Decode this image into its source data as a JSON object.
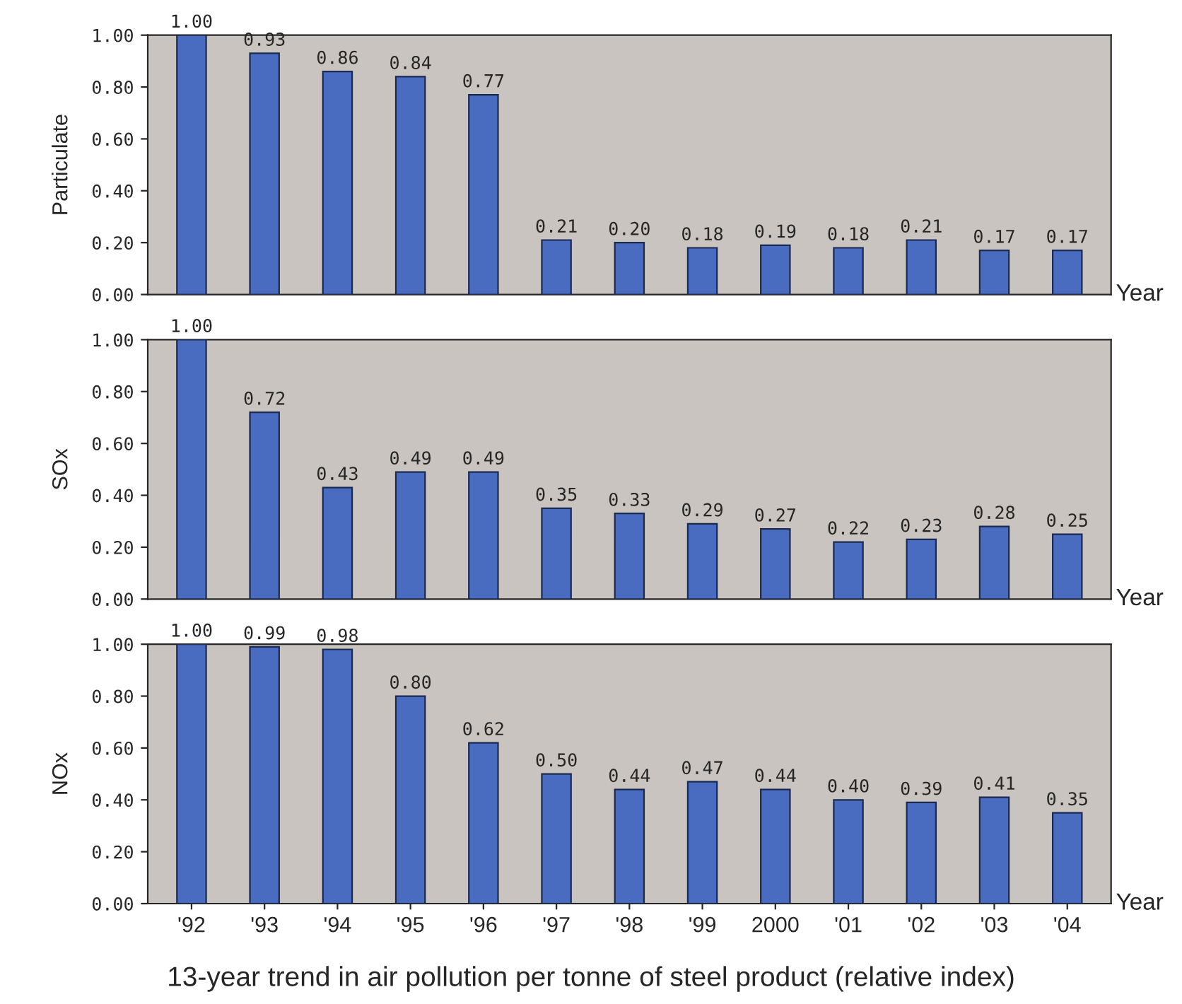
{
  "chart_data": [
    {
      "type": "bar",
      "ylabel": "Particulate",
      "xlabel": "Year",
      "categories": [
        null,
        null,
        null,
        null,
        null,
        null,
        null,
        null,
        null,
        null,
        null,
        null,
        null
      ],
      "values": [
        1.0,
        0.93,
        0.86,
        0.84,
        0.77,
        0.21,
        0.2,
        0.18,
        0.19,
        0.18,
        0.21,
        0.17,
        0.17
      ],
      "value_labels": [
        "1.00",
        "0.93",
        "0.86",
        "0.84",
        "0.77",
        "0.21",
        "0.20",
        "0.18",
        "0.19",
        "0.18",
        "0.21",
        "0.17",
        "0.17"
      ],
      "color": "#4a6cc0",
      "ylim": [
        0,
        1
      ],
      "yticks": [
        {
          "value": 0,
          "label": "0.00"
        },
        {
          "value": 0.2,
          "label": "0.20"
        },
        {
          "value": 0.4,
          "label": "0.40"
        },
        {
          "value": 0.6,
          "label": "0.60"
        },
        {
          "value": 0.8,
          "label": "0.80"
        },
        {
          "value": 1,
          "label": "1.00"
        }
      ],
      "tick_labels": "y"
    },
    {
      "type": "bar",
      "ylabel": "SOx",
      "xlabel": "Year",
      "categories": [
        null,
        null,
        null,
        null,
        null,
        null,
        null,
        null,
        null,
        null,
        null,
        null,
        null
      ],
      "values": [
        1.0,
        0.72,
        0.43,
        0.49,
        0.49,
        0.35,
        0.33,
        0.29,
        0.27,
        0.22,
        0.23,
        0.28,
        0.25
      ],
      "value_labels": [
        "1.00",
        "0.72",
        "0.43",
        "0.49",
        "0.49",
        "0.35",
        "0.33",
        "0.29",
        "0.27",
        "0.22",
        "0.23",
        "0.28",
        "0.25"
      ],
      "color": "#4a6cc0",
      "ylim": [
        0,
        1
      ],
      "yticks": [
        {
          "value": 0,
          "label": "0.00"
        },
        {
          "value": 0.2,
          "label": "0.20"
        },
        {
          "value": 0.4,
          "label": "0.40"
        },
        {
          "value": 0.6,
          "label": "0.60"
        },
        {
          "value": 0.8,
          "label": "0.80"
        },
        {
          "value": 1,
          "label": "1.00"
        }
      ],
      "tick_labels": "y"
    },
    {
      "type": "bar",
      "ylabel": "NOx",
      "xlabel": "Year",
      "categories": [
        "'92",
        "'93",
        "'94",
        "'95",
        "'96",
        "'97",
        "'98",
        "'99",
        "2000",
        "'01",
        "'02",
        "'03",
        "'04"
      ],
      "values": [
        1.0,
        0.99,
        0.98,
        0.8,
        0.62,
        0.5,
        0.44,
        0.47,
        0.44,
        0.4,
        0.39,
        0.41,
        0.35
      ],
      "value_labels": [
        "1.00",
        "0.99",
        "0.98",
        "0.80",
        "0.62",
        "0.50",
        "0.44",
        "0.47",
        "0.44",
        "0.40",
        "0.39",
        "0.41",
        "0.35"
      ],
      "color": "#4a6cc0",
      "ylim": [
        0,
        1
      ],
      "yticks": [
        {
          "value": 0,
          "label": "0.00"
        },
        {
          "value": 0.2,
          "label": "0.20"
        },
        {
          "value": 0.4,
          "label": "0.40"
        },
        {
          "value": 0.6,
          "label": "0.60"
        },
        {
          "value": 0.8,
          "label": "0.80"
        },
        {
          "value": 1,
          "label": "1.00"
        }
      ],
      "annotations": [
        "13-year trend in air pollution per tonne of steel product (relative index)"
      ]
    }
  ]
}
